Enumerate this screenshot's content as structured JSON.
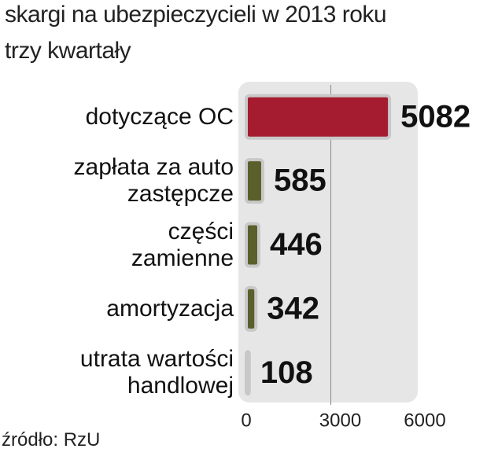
{
  "chart_data": {
    "type": "bar",
    "title": "skargi na ubezpieczycieli w 2013 roku",
    "subtitle": "trzy kwartały",
    "categories": [
      "dotyczące OC",
      "zapłata za auto\nzastępcze",
      "części\nzamienne",
      "amortyzacja",
      "utrata wartości\nhandlowej"
    ],
    "values": [
      5082,
      585,
      446,
      342,
      108
    ],
    "colors": [
      "#a51c30",
      "#5b5f2b",
      "#5b5f2b",
      "#5b5f2b",
      "#9a9a9a"
    ],
    "xlim": [
      0,
      6000
    ],
    "xticks": [
      0,
      3000,
      6000
    ],
    "grid": true,
    "source": "źródło: RzU"
  }
}
